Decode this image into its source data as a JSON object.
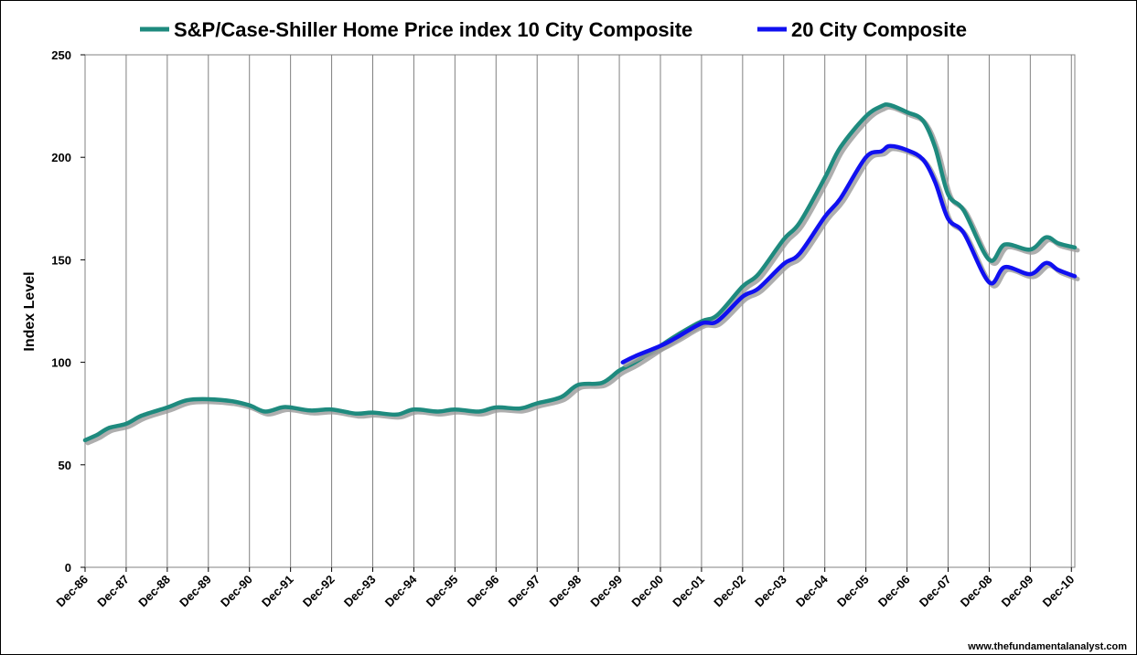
{
  "chart_data": {
    "type": "line",
    "title": "",
    "xlabel": "",
    "ylabel": "Index Level",
    "ylim": [
      0,
      250
    ],
    "y_ticks": [
      0,
      50,
      100,
      150,
      200,
      250
    ],
    "x_range": [
      1986.917,
      2011.0
    ],
    "x_tick_labels": [
      "Dec-86",
      "Dec-87",
      "Dec-88",
      "Dec-89",
      "Dec-90",
      "Dec-91",
      "Dec-92",
      "Dec-93",
      "Dec-94",
      "Dec-95",
      "Dec-96",
      "Dec-97",
      "Dec-98",
      "Dec-99",
      "Dec-00",
      "Dec-01",
      "Dec-02",
      "Dec-03",
      "Dec-04",
      "Dec-05",
      "Dec-06",
      "Dec-07",
      "Dec-08",
      "Dec-09",
      "Dec-10"
    ],
    "grid": "vertical",
    "legend": "top",
    "series": [
      {
        "name": "S&P/Case-Shiller Home Price index 10 City Composite",
        "color": "#1e8a7e",
        "points": [
          [
            1986.917,
            62.0
          ],
          [
            1987.2,
            64.5
          ],
          [
            1987.5,
            68.0
          ],
          [
            1987.917,
            70.0
          ],
          [
            1988.3,
            74.0
          ],
          [
            1988.917,
            78.0
          ],
          [
            1989.4,
            81.5
          ],
          [
            1989.917,
            82.0
          ],
          [
            1990.5,
            81.0
          ],
          [
            1990.917,
            79.0
          ],
          [
            1991.3,
            76.0
          ],
          [
            1991.7,
            78.0
          ],
          [
            1991.917,
            78.0
          ],
          [
            1992.4,
            76.5
          ],
          [
            1992.917,
            77.0
          ],
          [
            1993.5,
            75.0
          ],
          [
            1993.917,
            75.5
          ],
          [
            1994.5,
            74.5
          ],
          [
            1994.917,
            77.0
          ],
          [
            1995.5,
            76.0
          ],
          [
            1995.917,
            77.0
          ],
          [
            1996.5,
            76.0
          ],
          [
            1996.917,
            78.0
          ],
          [
            1997.5,
            77.5
          ],
          [
            1997.917,
            80.0
          ],
          [
            1998.5,
            83.0
          ],
          [
            1998.917,
            89.0
          ],
          [
            1999.5,
            90.0
          ],
          [
            1999.917,
            96.0
          ],
          [
            2000.3,
            100.0
          ],
          [
            2000.917,
            108.0
          ],
          [
            2001.3,
            113.0
          ],
          [
            2001.917,
            120.0
          ],
          [
            2002.3,
            123.0
          ],
          [
            2002.917,
            137.0
          ],
          [
            2003.3,
            143.0
          ],
          [
            2003.917,
            160.0
          ],
          [
            2004.3,
            168.0
          ],
          [
            2004.917,
            190.0
          ],
          [
            2005.3,
            205.0
          ],
          [
            2005.917,
            220.0
          ],
          [
            2006.3,
            225.0
          ],
          [
            2006.5,
            225.5
          ],
          [
            2006.917,
            222.0
          ],
          [
            2007.3,
            218.0
          ],
          [
            2007.6,
            205.0
          ],
          [
            2007.917,
            182.0
          ],
          [
            2008.3,
            174.0
          ],
          [
            2008.917,
            150.0
          ],
          [
            2009.3,
            157.5
          ],
          [
            2009.917,
            155.0
          ],
          [
            2010.3,
            161.0
          ],
          [
            2010.6,
            158.0
          ],
          [
            2011.0,
            156.0
          ]
        ]
      },
      {
        "name": "20 City Composite",
        "color": "#1010f0",
        "points": [
          [
            2000.0,
            100.0
          ],
          [
            2000.3,
            103.0
          ],
          [
            2000.917,
            108.0
          ],
          [
            2001.3,
            112.0
          ],
          [
            2001.917,
            119.0
          ],
          [
            2002.3,
            120.0
          ],
          [
            2002.917,
            132.0
          ],
          [
            2003.3,
            136.0
          ],
          [
            2003.917,
            148.0
          ],
          [
            2004.3,
            153.0
          ],
          [
            2004.917,
            171.0
          ],
          [
            2005.3,
            180.0
          ],
          [
            2005.917,
            200.0
          ],
          [
            2006.3,
            203.0
          ],
          [
            2006.5,
            205.5
          ],
          [
            2006.917,
            203.5
          ],
          [
            2007.3,
            199.0
          ],
          [
            2007.6,
            188.0
          ],
          [
            2007.917,
            170.0
          ],
          [
            2008.3,
            163.0
          ],
          [
            2008.917,
            139.0
          ],
          [
            2009.3,
            146.5
          ],
          [
            2009.917,
            143.0
          ],
          [
            2010.3,
            148.5
          ],
          [
            2010.6,
            145.0
          ],
          [
            2011.0,
            142.0
          ]
        ]
      }
    ]
  },
  "credit": "www.thefundamentalanalyst.com"
}
